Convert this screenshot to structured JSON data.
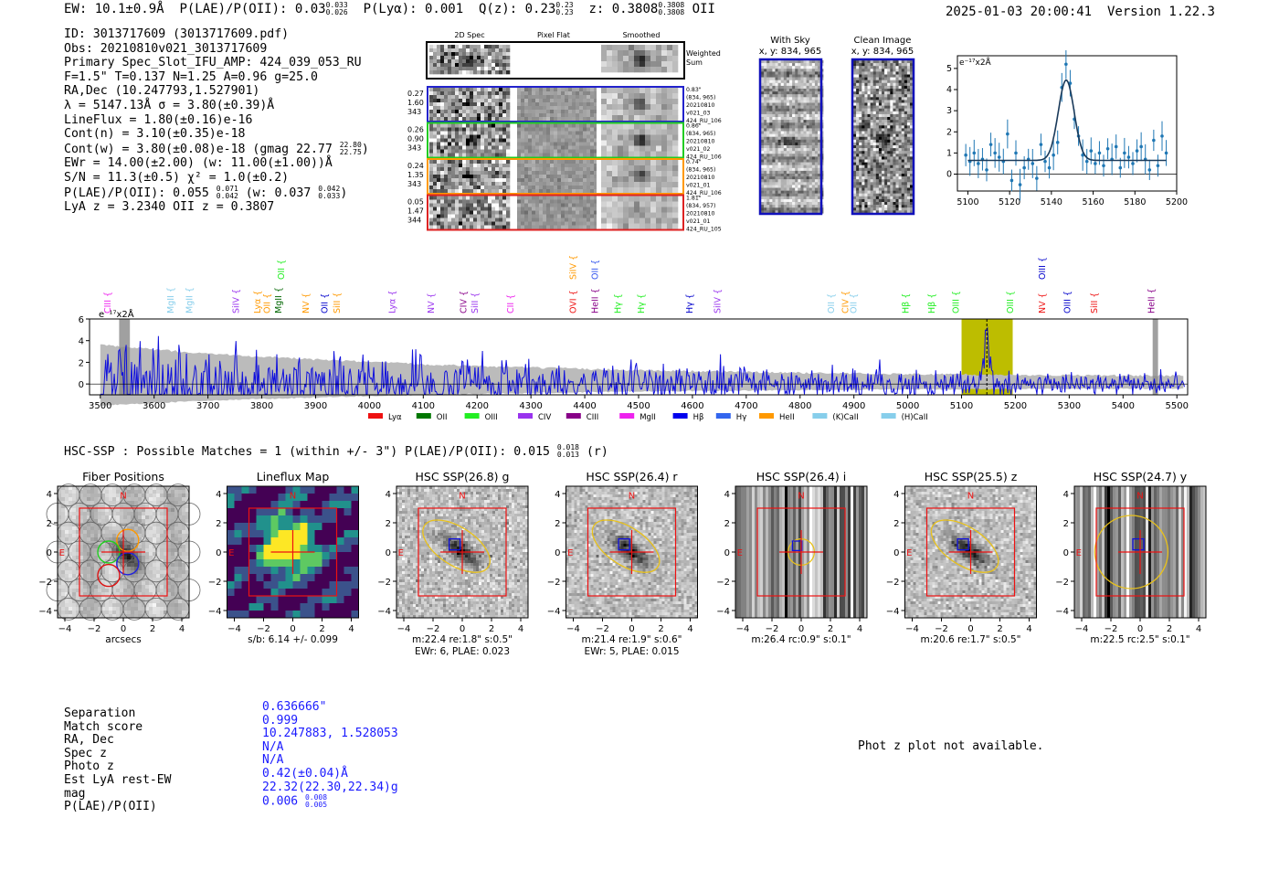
{
  "header": {
    "ew": "EW: 10.1±0.9Å",
    "plae_label": "P(LAE)/P(OII):",
    "plae": "0.03",
    "plae_hi": "0.033",
    "plae_lo": "0.026",
    "plya": "P(Lyα): 0.001",
    "qz_label": "Q(z):",
    "qz": "0.23",
    "qz_hi": "0.23",
    "qz_lo": "0.23",
    "z_label": "z:",
    "z": "0.3808",
    "z_hi": "0.3808",
    "z_lo": "0.3808",
    "line": "OII",
    "timestamp": "2025-01-03 20:00:41",
    "version": "Version 1.22.3"
  },
  "info": {
    "id": "ID: 3013717609 (3013717609.pdf)",
    "obs": "Obs: 20210810v021_3013717609",
    "primary": "Primary Spec_Slot_IFU_AMP: 424_039_053_RU",
    "params": "F=1.5\"  T=0.137  N=1.25  A=0.96  g=25.0",
    "radec": "RA,Dec (10.247793,1.527901)",
    "lambda": "λ = 5147.13Å  σ = 3.80(±0.39)Å",
    "lineflux": "LineFlux = 1.80(±0.16)e-16",
    "contn": "Cont(n) = 3.10(±0.35)e-18",
    "contw": "Cont(w) = 3.80(±0.08)e-18 (gmag 22.77",
    "contw_hi": "22.80",
    "contw_lo": "22.75",
    "contw_end": ")",
    "ewr": "EWr = 14.00(±2.00) (w: 11.00(±1.00))Å",
    "sn": "S/N = 11.3(±0.5)  χ² = 1.0(±0.2)",
    "plae": "P(LAE)/P(OII): 0.055",
    "plae_hi": "0.071",
    "plae_lo": "0.042",
    "plae_w": "(w: 0.037",
    "plae_w_hi": "0.042",
    "plae_w_lo": "0.033",
    "plae_end": ")",
    "lya_z": "LyA z = 3.2340  OII z = 0.3807"
  },
  "cutouts": {
    "col_headers": [
      "2D Spec",
      "Pixel Flat",
      "Smoothed"
    ],
    "weighted_sum": [
      "Weighted",
      "Sum"
    ],
    "rows": [
      {
        "vals": [
          "0.27",
          "1.60",
          "343"
        ],
        "notes": [
          "0.83\"",
          "(834, 965)",
          "20210810",
          "v021_03",
          "424_RU_106"
        ],
        "color": "#2222cc"
      },
      {
        "vals": [
          "0.26",
          "0.90",
          "343"
        ],
        "notes": [
          "0.86\"",
          "(834, 965)",
          "20210810",
          "v021_02",
          "424_RU_106"
        ],
        "color": "#22cc22"
      },
      {
        "vals": [
          "0.24",
          "1.35",
          "343"
        ],
        "notes": [
          "0.74\"",
          "(834, 965)",
          "20210810",
          "v021_01",
          "424_RU_106"
        ],
        "color": "#ff9900"
      },
      {
        "vals": [
          "0.05",
          "1.47",
          "344"
        ],
        "notes": [
          "1.81\"",
          "(834, 957)",
          "20210810",
          "v021_01",
          "424_RU_105"
        ],
        "color": "#dd2222"
      }
    ],
    "with_sky": [
      "With Sky",
      "x, y: 834, 965"
    ],
    "clean_image": [
      "Clean Image",
      "x, y: 834, 965"
    ]
  },
  "chart_data": [
    {
      "type": "line",
      "title": "",
      "ylabel_note": "e⁻¹⁷x2Å",
      "xlabel": "",
      "xlim": [
        5095,
        5200
      ],
      "ylim": [
        -0.8,
        5.6
      ],
      "xticks": [
        "5100",
        "5120",
        "5140",
        "5160",
        "5180",
        "5200"
      ],
      "yticks": [
        "0",
        "1",
        "2",
        "3",
        "4",
        "5"
      ],
      "series": [
        {
          "name": "data",
          "x": [
            5099,
            5101,
            5103,
            5105,
            5107,
            5109,
            5111,
            5113,
            5115,
            5117,
            5119,
            5121,
            5123,
            5125,
            5127,
            5129,
            5131,
            5133,
            5135,
            5137,
            5139,
            5141,
            5143,
            5145,
            5147,
            5149,
            5151,
            5153,
            5155,
            5157,
            5159,
            5161,
            5163,
            5165,
            5167,
            5169,
            5171,
            5173,
            5175,
            5177,
            5179,
            5181,
            5183,
            5185,
            5187,
            5189,
            5191,
            5193,
            5195
          ],
          "values": [
            0.9,
            0.6,
            1.0,
            0.5,
            0.7,
            0.2,
            1.4,
            1.0,
            0.8,
            0.6,
            1.9,
            -0.3,
            1.0,
            -0.5,
            0.3,
            0.7,
            0.5,
            -0.2,
            1.4,
            0.6,
            0.3,
            0.9,
            1.5,
            4.1,
            5.2,
            4.3,
            2.6,
            1.8,
            0.9,
            0.6,
            1.1,
            0.5,
            1.0,
            0.4,
            1.2,
            0.7,
            1.3,
            0.3,
            1.0,
            0.8,
            0.5,
            1.1,
            1.3,
            0.7,
            0.2,
            1.6,
            0.4,
            1.8,
            1.0
          ]
        },
        {
          "name": "gaussian fit",
          "center": 5147.1,
          "sigma": 3.8,
          "amplitude": 3.8,
          "baseline": 0.65
        }
      ]
    },
    {
      "type": "line",
      "title": "",
      "ylabel_note": "e⁻¹⁷x2Å",
      "xlim": [
        3480,
        5520
      ],
      "ylim": [
        -1,
        6
      ],
      "xticks": [
        "3500",
        "3600",
        "3700",
        "3800",
        "3900",
        "4000",
        "4100",
        "4200",
        "4300",
        "4400",
        "4500",
        "4600",
        "4700",
        "4800",
        "4900",
        "5000",
        "5100",
        "5200",
        "5300",
        "5400",
        "5500"
      ],
      "yticks": [
        "0",
        "2",
        "4",
        "6"
      ],
      "series": [
        {
          "name": "spectrum",
          "noise_amplitude_low": 2.2,
          "noise_amplitude_high": 0.5,
          "emission_line": {
            "center": 5147,
            "peak": 4.7,
            "sigma": 4
          }
        },
        {
          "name": "error",
          "level_low": 3.0,
          "level_high": 0.5
        }
      ],
      "highlight": [
        5100,
        5195
      ],
      "marker_line": 5147,
      "masked_regions": [
        [
          3535,
          3555
        ],
        [
          5455,
          5465
        ]
      ],
      "line_labels": [
        {
          "label": "CIII",
          "x": 3514,
          "color": "#ee22ee",
          "row": 0
        },
        {
          "label": "MgII",
          "x": 3631,
          "color": "#87ceeb",
          "row": 0
        },
        {
          "label": "MgII",
          "x": 3666,
          "color": "#87ceeb",
          "row": 0
        },
        {
          "label": "SiIV",
          "x": 3752,
          "color": "#9933ee",
          "row": 0
        },
        {
          "label": "Lyα",
          "x": 3792,
          "color": "#ff9900",
          "row": 0
        },
        {
          "label": "OII",
          "x": 3810,
          "color": "#ff9900",
          "row": 0
        },
        {
          "label": "MgII",
          "x": 3831,
          "color": "#006600",
          "row": 0
        },
        {
          "label": "OII",
          "x": 3836,
          "color": "#22ee22",
          "row": 1
        },
        {
          "label": "NV",
          "x": 3882,
          "color": "#ff9900",
          "row": 0
        },
        {
          "label": "OII",
          "x": 3917,
          "color": "#0000cc",
          "row": 0
        },
        {
          "label": "SiII",
          "x": 3940,
          "color": "#ff9900",
          "row": 0
        },
        {
          "label": "Lyα",
          "x": 4043,
          "color": "#9933ee",
          "row": 0
        },
        {
          "label": "NV",
          "x": 4115,
          "color": "#9933ee",
          "row": 0
        },
        {
          "label": "CIV",
          "x": 4175,
          "color": "#880088",
          "row": 0
        },
        {
          "label": "SiII",
          "x": 4196,
          "color": "#9933ee",
          "row": 0
        },
        {
          "label": "CII",
          "x": 4262,
          "color": "#ee22ee",
          "row": 0
        },
        {
          "label": "OVI",
          "x": 4379,
          "color": "#ee1111",
          "row": 0
        },
        {
          "label": "SiIV",
          "x": 4379,
          "color": "#ff9900",
          "row": 1
        },
        {
          "label": "HeII",
          "x": 4419,
          "color": "#880088",
          "row": 0
        },
        {
          "label": "OII",
          "x": 4419,
          "color": "#3355ee",
          "row": 1
        },
        {
          "label": "Hγ",
          "x": 4462,
          "color": "#22ee22",
          "row": 0
        },
        {
          "label": "Hγ",
          "x": 4505,
          "color": "#22ee22",
          "row": 0
        },
        {
          "label": "Hγ",
          "x": 4595,
          "color": "#0000cc",
          "row": 0
        },
        {
          "label": "SiIV",
          "x": 4647,
          "color": "#9933ee",
          "row": 0
        },
        {
          "label": "OII",
          "x": 4858,
          "color": "#87ceeb",
          "row": 0
        },
        {
          "label": "CIV",
          "x": 4884,
          "color": "#ff9900",
          "row": 0
        },
        {
          "label": "OII",
          "x": 4900,
          "color": "#87ceeb",
          "row": 0
        },
        {
          "label": "Hβ",
          "x": 4996,
          "color": "#22ee22",
          "row": 0
        },
        {
          "label": "Hβ",
          "x": 5045,
          "color": "#22ee22",
          "row": 0
        },
        {
          "label": "OIII",
          "x": 5090,
          "color": "#22ee22",
          "row": 0
        },
        {
          "label": "OIII",
          "x": 5191,
          "color": "#22ee22",
          "row": 0
        },
        {
          "label": "NV",
          "x": 5250,
          "color": "#ee1111",
          "row": 0
        },
        {
          "label": "OIII",
          "x": 5250,
          "color": "#0000cc",
          "row": 1
        },
        {
          "label": "OIII",
          "x": 5297,
          "color": "#0000cc",
          "row": 0
        },
        {
          "label": "SiII",
          "x": 5347,
          "color": "#ee1111",
          "row": 0
        },
        {
          "label": "HeII",
          "x": 5453,
          "color": "#880088",
          "row": 0
        }
      ],
      "legend": [
        {
          "label": "Lyα",
          "color": "#ee1111"
        },
        {
          "label": "OII",
          "color": "#007700"
        },
        {
          "label": "OIII",
          "color": "#22ee22"
        },
        {
          "label": "CIV",
          "color": "#9933ee"
        },
        {
          "label": "CIII",
          "color": "#880088"
        },
        {
          "label": "MgII",
          "color": "#ee22ee"
        },
        {
          "label": "Hβ",
          "color": "#0000ee"
        },
        {
          "label": "Hγ",
          "color": "#3366ee"
        },
        {
          "label": "HeII",
          "color": "#ff9900"
        },
        {
          "label": "(K)CaII",
          "color": "#87ceeb"
        },
        {
          "label": "(H)CaII",
          "color": "#87ceeb"
        }
      ]
    },
    {
      "type": "heatmap",
      "panels": [
        {
          "title": "Fiber Positions",
          "xlabel": "arcsecs",
          "footer": [],
          "kind": "fiber"
        },
        {
          "title": "Lineflux Map",
          "xlabel": "s/b: 6.14 +/- 0.099",
          "footer": [],
          "kind": "lineflux"
        },
        {
          "title": "HSC SSP(26.8) g",
          "xlabel": "m:22.4  re:1.8\"  s:0.5\"",
          "footer": [
            "EWr: 6, PLAE: 0.023"
          ],
          "kind": "galaxy"
        },
        {
          "title": "HSC SSP(26.4) r",
          "xlabel": "m:21.4  re:1.9\"  s:0.6\"",
          "footer": [
            "EWr: 5, PLAE: 0.015"
          ],
          "kind": "galaxy"
        },
        {
          "title": "HSC SSP(26.4) i",
          "xlabel": "m:26.4 rc:0.9\"  s:0.1\"",
          "footer": [],
          "kind": "striped"
        },
        {
          "title": "HSC SSP(25.5) z",
          "xlabel": "m:20.6  re:1.7\"  s:0.5\"",
          "footer": [],
          "kind": "galaxy"
        },
        {
          "title": "HSC SSP(24.7) y",
          "xlabel": "m:22.5 rc:2.5\"  s:0.1\"",
          "footer": [],
          "kind": "striped_big"
        }
      ],
      "xticks": [
        "−4",
        "−2",
        "0",
        "2",
        "4"
      ],
      "yticks": [
        "4",
        "2",
        "0",
        "−2",
        "−4"
      ],
      "north_label": "N",
      "east_label": "E"
    }
  ],
  "hsc": {
    "title": "HSC-SSP : Possible Matches = 1 (within +/- 3\")  P(LAE)/P(OII): 0.015",
    "plae_hi": "0.018",
    "plae_lo": "0.013",
    "band": "(r)"
  },
  "match": {
    "labels": [
      "Separation",
      "Match score",
      "RA, Dec",
      "Spec z",
      "Photo z",
      "Est LyA rest-EW",
      "mag",
      "P(LAE)/P(OII)"
    ],
    "values": [
      "0.636666\"",
      "0.999",
      "10.247883, 1.528053",
      "N/A",
      "N/A",
      "0.42(±0.04)Å",
      "22.32(22.30,22.34)g",
      "0.006"
    ],
    "plae_hi": "0.008",
    "plae_lo": "0.005",
    "phot_note": "Phot z plot not available."
  }
}
